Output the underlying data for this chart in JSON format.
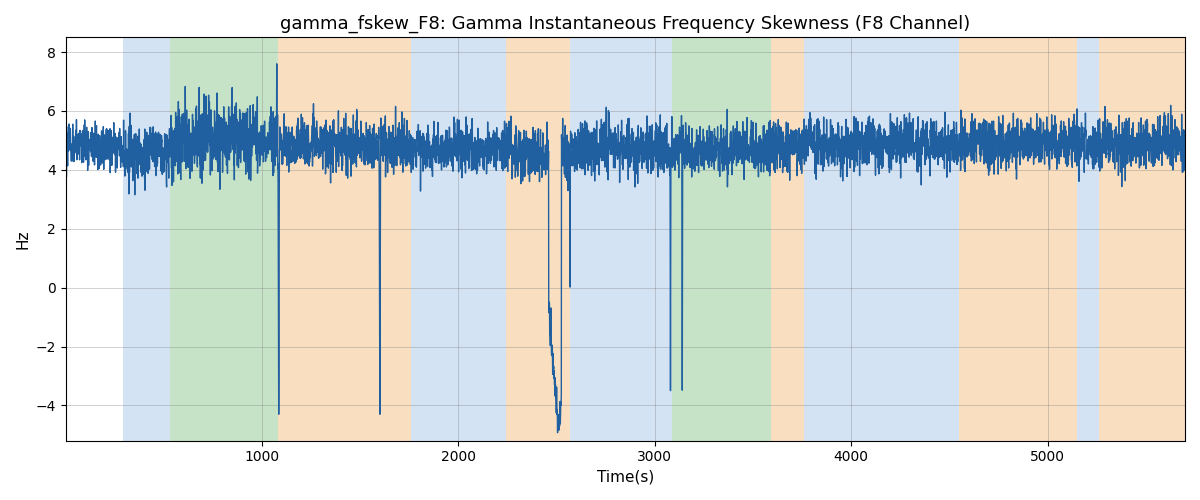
{
  "title": "gamma_fskew_F8: Gamma Instantaneous Frequency Skewness (F8 Channel)",
  "xlabel": "Time(s)",
  "ylabel": "Hz",
  "xlim": [
    0,
    5700
  ],
  "ylim": [
    -5.2,
    8.5
  ],
  "yticks": [
    -4,
    -2,
    0,
    2,
    4,
    6,
    8
  ],
  "xticks": [
    1000,
    2000,
    3000,
    4000,
    5000
  ],
  "line_color": "#2060a0",
  "line_width": 1.0,
  "bg_bands": [
    {
      "xmin": 290,
      "xmax": 530,
      "color": "#a8c8e8",
      "alpha": 0.5
    },
    {
      "xmin": 530,
      "xmax": 1080,
      "color": "#90c890",
      "alpha": 0.5
    },
    {
      "xmin": 1080,
      "xmax": 1760,
      "color": "#f5c080",
      "alpha": 0.5
    },
    {
      "xmin": 1760,
      "xmax": 2240,
      "color": "#a8c8e8",
      "alpha": 0.5
    },
    {
      "xmin": 2240,
      "xmax": 2570,
      "color": "#f5c080",
      "alpha": 0.5
    },
    {
      "xmin": 2570,
      "xmax": 3090,
      "color": "#a8c8e8",
      "alpha": 0.5
    },
    {
      "xmin": 3090,
      "xmax": 3590,
      "color": "#90c890",
      "alpha": 0.5
    },
    {
      "xmin": 3590,
      "xmax": 3760,
      "color": "#f5c080",
      "alpha": 0.5
    },
    {
      "xmin": 3760,
      "xmax": 4550,
      "color": "#a8c8e8",
      "alpha": 0.5
    },
    {
      "xmin": 4550,
      "xmax": 5150,
      "color": "#f5c080",
      "alpha": 0.5
    },
    {
      "xmin": 5150,
      "xmax": 5260,
      "color": "#a8c8e8",
      "alpha": 0.5
    },
    {
      "xmin": 5260,
      "xmax": 5700,
      "color": "#f5c080",
      "alpha": 0.5
    }
  ],
  "base_mean": 4.9,
  "base_std": 0.42,
  "seed": 137
}
